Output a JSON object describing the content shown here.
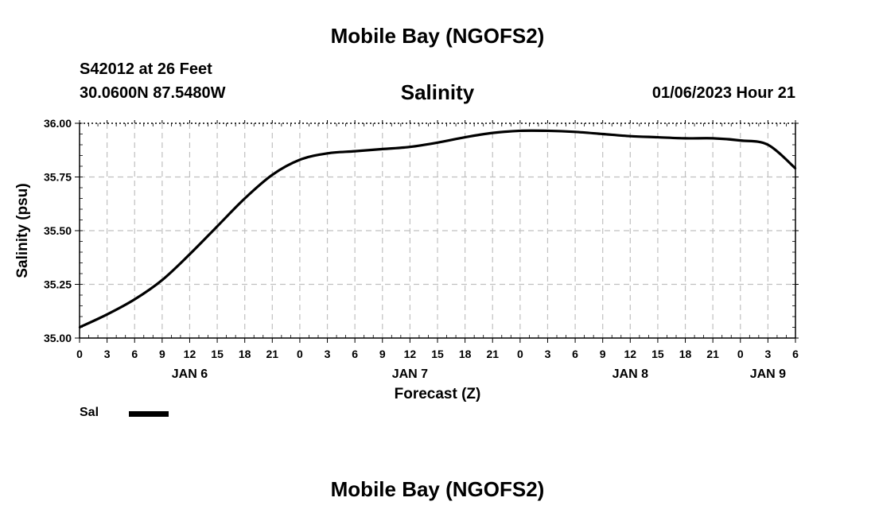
{
  "header": {
    "title": "Mobile Bay (NGOFS2)",
    "station": "S42012 at 26 Feet",
    "coordinates": "30.0600N  87.5480W",
    "timestamp": "01/06/2023 Hour 21"
  },
  "footer": {
    "title": "Mobile Bay (NGOFS2)"
  },
  "legend": {
    "label": "Sal",
    "color": "#000000"
  },
  "chart_data": {
    "type": "line",
    "title": "Salinity",
    "xlabel": "Forecast (Z)",
    "ylabel": "Salinity (psu)",
    "ylim": [
      35.0,
      36.0
    ],
    "xlim": [
      0,
      78
    ],
    "x_unit": "hours since JAN 6 00Z",
    "yticks": [
      "35.00",
      "35.25",
      "35.50",
      "35.75",
      "36.00"
    ],
    "xticks": [
      "0",
      "3",
      "6",
      "9",
      "12",
      "15",
      "18",
      "21",
      "0",
      "3",
      "6",
      "9",
      "12",
      "15",
      "18",
      "21",
      "0",
      "3",
      "6",
      "9",
      "12",
      "15",
      "18",
      "21",
      "0",
      "3",
      "6"
    ],
    "date_labels": [
      {
        "label": "JAN 6",
        "hour": 12
      },
      {
        "label": "JAN 7",
        "hour": 36
      },
      {
        "label": "JAN 8",
        "hour": 60
      },
      {
        "label": "JAN 9",
        "hour": 75
      }
    ],
    "grid": true,
    "series": [
      {
        "name": "Sal",
        "x": [
          0,
          3,
          6,
          9,
          12,
          15,
          18,
          21,
          24,
          27,
          30,
          33,
          36,
          39,
          42,
          45,
          48,
          51,
          54,
          57,
          60,
          63,
          66,
          69,
          72,
          75,
          78
        ],
        "values": [
          35.05,
          35.11,
          35.18,
          35.27,
          35.39,
          35.52,
          35.65,
          35.76,
          35.83,
          35.86,
          35.87,
          35.88,
          35.89,
          35.91,
          35.935,
          35.955,
          35.965,
          35.965,
          35.96,
          35.95,
          35.94,
          35.935,
          35.93,
          35.93,
          35.92,
          35.9,
          35.79
        ]
      }
    ]
  }
}
